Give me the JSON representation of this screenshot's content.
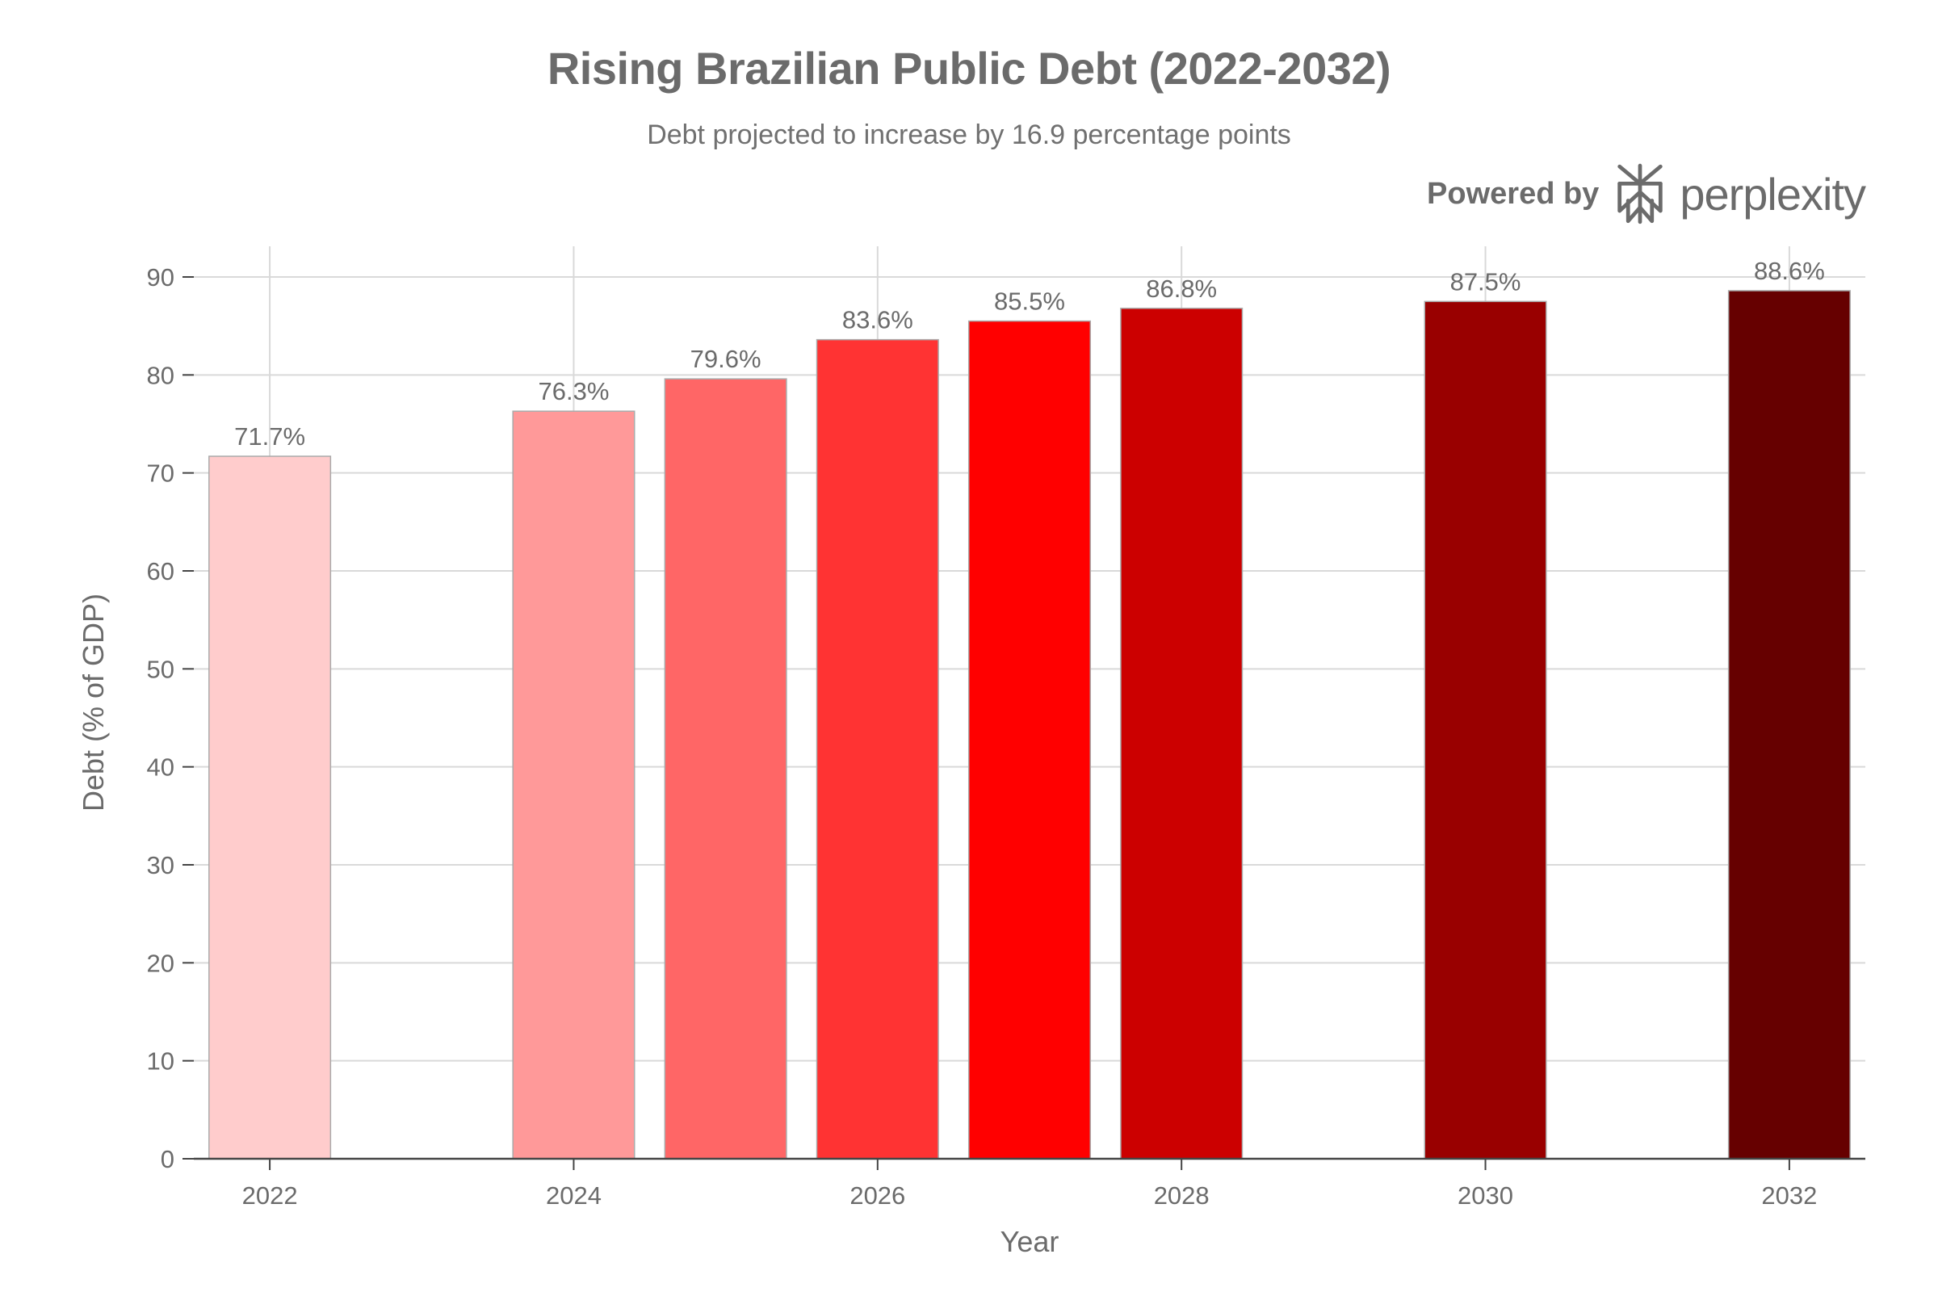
{
  "chart_data": {
    "type": "bar",
    "title": "Rising Brazilian Public Debt (2022-2032)",
    "subtitle": "Debt projected to increase by 16.9 percentage points",
    "xlabel": "Year",
    "ylabel": "Debt (% of GDP)",
    "xlim": [
      2021.5,
      2032.5
    ],
    "ylim": [
      0,
      90
    ],
    "x_ticks": [
      2022,
      2024,
      2026,
      2028,
      2030,
      2032
    ],
    "y_ticks": [
      0,
      10,
      20,
      30,
      40,
      50,
      60,
      70,
      80,
      90
    ],
    "grid": true,
    "bars": [
      {
        "x": 2022,
        "value": 71.7,
        "label": "71.7%",
        "color": "#ffcccc"
      },
      {
        "x": 2024,
        "value": 76.3,
        "label": "76.3%",
        "color": "#ff9999"
      },
      {
        "x": 2025,
        "value": 79.6,
        "label": "79.6%",
        "color": "#ff6666"
      },
      {
        "x": 2026,
        "value": 83.6,
        "label": "83.6%",
        "color": "#ff3333"
      },
      {
        "x": 2027,
        "value": 85.5,
        "label": "85.5%",
        "color": "#ff0000"
      },
      {
        "x": 2028,
        "value": 86.8,
        "label": "86.8%",
        "color": "#cc0000"
      },
      {
        "x": 2030,
        "value": 87.5,
        "label": "87.5%",
        "color": "#990000"
      },
      {
        "x": 2032,
        "value": 88.6,
        "label": "88.6%",
        "color": "#660000"
      }
    ]
  },
  "brand": {
    "powered_by": "Powered by",
    "name": "perplexity",
    "logo_icon": "perplexity-logo-icon"
  }
}
